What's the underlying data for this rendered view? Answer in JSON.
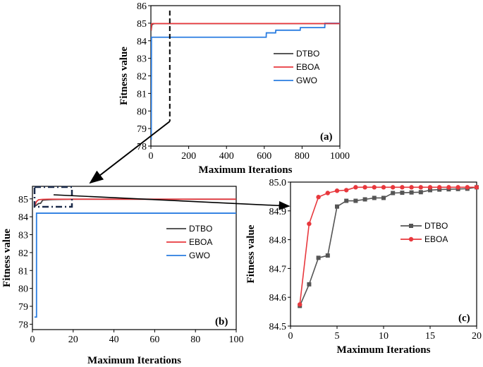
{
  "chart_data": [
    {
      "type": "line",
      "panel_label": "(a)",
      "xlabel": "Maximum Iterations",
      "ylabel": "Fitness value",
      "xlim": [
        0,
        1000
      ],
      "ylim": [
        78,
        86
      ],
      "xticks": [
        0,
        200,
        400,
        600,
        800,
        1000
      ],
      "yticks": [
        78,
        79,
        80,
        81,
        82,
        83,
        84,
        85,
        86
      ],
      "legend": [
        "DTBO",
        "EBOA",
        "GWO"
      ],
      "series": [
        {
          "name": "DTBO",
          "color": "#404040",
          "x": [
            1,
            5,
            10,
            20,
            50,
            100,
            1000
          ],
          "y": [
            84.57,
            84.9,
            84.95,
            84.98,
            84.98,
            84.98,
            84.98
          ]
        },
        {
          "name": "EBOA",
          "color": "#e8383d",
          "x": [
            1,
            3,
            8,
            20,
            100,
            1000
          ],
          "y": [
            84.58,
            84.95,
            84.98,
            84.98,
            84.98,
            84.98
          ]
        },
        {
          "name": "GWO",
          "color": "#2a7de1",
          "x": [
            0,
            2,
            3,
            610,
            611,
            660,
            661,
            790,
            791,
            920,
            921,
            1000
          ],
          "y": [
            78.4,
            78.4,
            84.2,
            84.2,
            84.45,
            84.45,
            84.6,
            84.6,
            84.75,
            84.75,
            85.0,
            85.0
          ]
        }
      ]
    },
    {
      "type": "line",
      "panel_label": "(b)",
      "xlabel": "Maximum Iterations",
      "ylabel": "Fitness value",
      "xlim": [
        0,
        100
      ],
      "ylim": [
        77.7,
        85.7
      ],
      "xticks": [
        0,
        20,
        40,
        60,
        80,
        100
      ],
      "yticks": [
        78,
        79,
        80,
        81,
        82,
        83,
        84,
        85
      ],
      "legend": [
        "DTBO",
        "EBOA",
        "GWO"
      ],
      "series": [
        {
          "name": "DTBO",
          "color": "#404040",
          "x": [
            1,
            2,
            3,
            4,
            5,
            6,
            8,
            10,
            15,
            20,
            100
          ],
          "y": [
            84.57,
            84.65,
            84.74,
            84.75,
            84.92,
            84.94,
            84.95,
            84.96,
            84.97,
            84.98,
            84.98
          ]
        },
        {
          "name": "EBOA",
          "color": "#e8383d",
          "x": [
            1,
            2,
            3,
            4,
            5,
            8,
            20,
            100
          ],
          "y": [
            84.58,
            84.85,
            84.95,
            84.96,
            84.97,
            84.98,
            84.98,
            84.98
          ]
        },
        {
          "name": "GWO",
          "color": "#2a7de1",
          "x": [
            1,
            2,
            2,
            100
          ],
          "y": [
            78.4,
            78.4,
            84.2,
            84.2
          ]
        }
      ]
    },
    {
      "type": "line",
      "panel_label": "(c)",
      "xlabel": "Maximum Iterations",
      "ylabel": "Fitness value",
      "xlim": [
        0,
        20
      ],
      "ylim": [
        84.5,
        85.0
      ],
      "xticks": [
        0,
        5,
        10,
        15,
        20
      ],
      "yticks": [
        84.5,
        84.6,
        84.7,
        84.8,
        84.9,
        85.0
      ],
      "legend": [
        "DTBO",
        "EBOA"
      ],
      "series": [
        {
          "name": "DTBO",
          "color": "#555555",
          "marker": "square",
          "x": [
            1,
            2,
            3,
            4,
            5,
            6,
            7,
            8,
            9,
            10,
            11,
            12,
            13,
            14,
            15,
            16,
            17,
            18,
            19,
            20
          ],
          "y": [
            84.57,
            84.645,
            84.737,
            84.745,
            84.915,
            84.935,
            84.935,
            84.94,
            84.945,
            84.945,
            84.962,
            84.963,
            84.964,
            84.965,
            84.972,
            84.974,
            84.975,
            84.976,
            84.977,
            84.982
          ]
        },
        {
          "name": "EBOA",
          "color": "#e8383d",
          "marker": "circle",
          "x": [
            1,
            2,
            3,
            4,
            5,
            6,
            7,
            8,
            9,
            10,
            11,
            12,
            13,
            14,
            15,
            16,
            17,
            18,
            19,
            20
          ],
          "y": [
            84.575,
            84.855,
            84.948,
            84.962,
            84.97,
            84.972,
            84.982,
            84.982,
            84.982,
            84.982,
            84.982,
            84.982,
            84.982,
            84.982,
            84.982,
            84.982,
            84.982,
            84.982,
            84.982,
            84.982
          ]
        }
      ]
    }
  ]
}
